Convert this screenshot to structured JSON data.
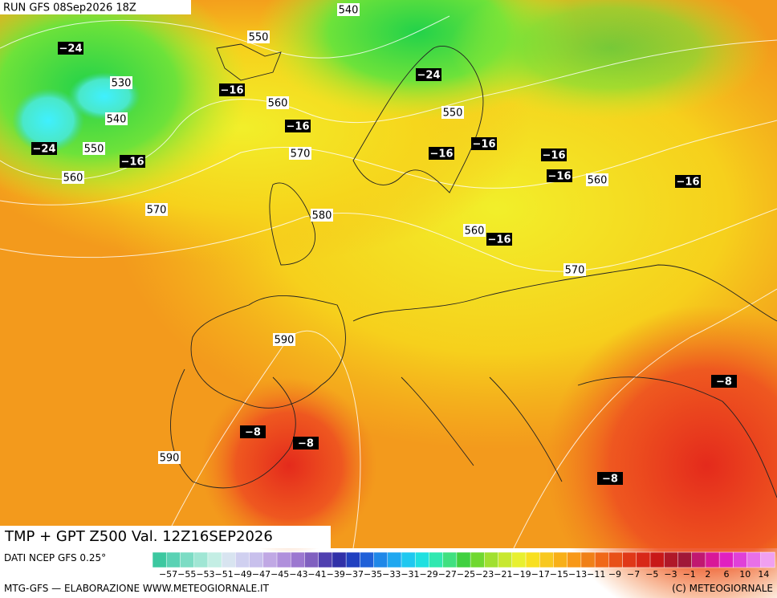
{
  "header": {
    "run": "RUN GFS 08Sep2026 18Z"
  },
  "contour_labels": [
    "540",
    "550",
    "530",
    "540",
    "550",
    "560",
    "560",
    "570",
    "570",
    "580",
    "550",
    "560",
    "560",
    "570",
    "590",
    "590"
  ],
  "temperature_labels": [
    "−24",
    "−16",
    "−16",
    "−24",
    "−16",
    "−24",
    "−16",
    "−16",
    "−16",
    "−16",
    "−16",
    "−16",
    "−8",
    "−8",
    "−8",
    "−8"
  ],
  "footer": {
    "product": "TMP + GPT Z500 Val. 12Z16SEP2026",
    "source": "DATI NCEP GFS 0.25°",
    "credit": "MTG-GFS — ELABORAZIONE WWW.METEOGIORNALE.IT",
    "copyright": "(C) METEOGIORNALE"
  },
  "colorbar": {
    "labels": [
      "−57",
      "−55",
      "−53",
      "−51",
      "−49",
      "−47",
      "−45",
      "−43",
      "−41",
      "−39",
      "−37",
      "−35",
      "−33",
      "−31",
      "−29",
      "−27",
      "−25",
      "−23",
      "−21",
      "−19",
      "−17",
      "−15",
      "−13",
      "−11",
      "−9",
      "−7",
      "−5",
      "−3",
      "−1",
      "2",
      "6",
      "10",
      "14"
    ]
  }
}
